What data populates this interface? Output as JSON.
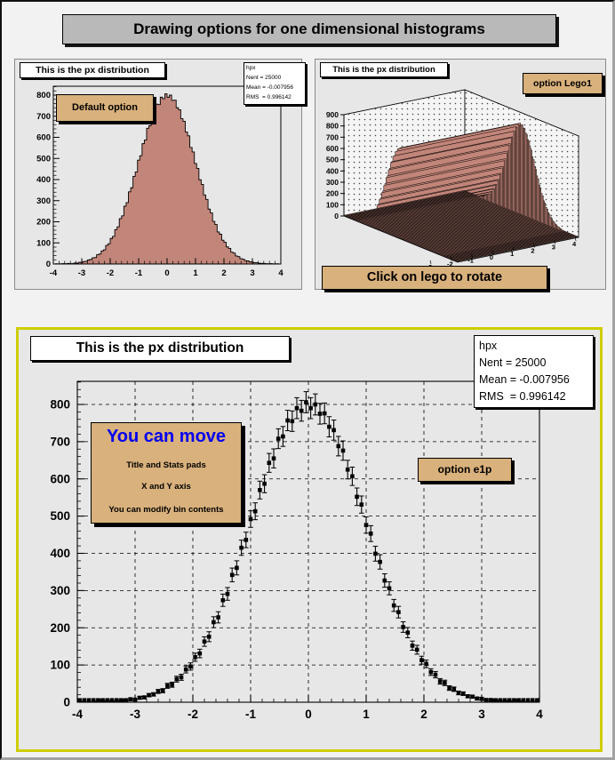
{
  "window": {
    "banner": "Drawing options for one dimensional histograms"
  },
  "colors": {
    "hist_fill": "#c28579",
    "label_tan": "#d9b17c",
    "banner_gray": "#b9b9b9",
    "selected_pad_border_yellow": "#cdcd00",
    "move_title_blue": "#0000f0",
    "wall_bg": "#f5f5f5"
  },
  "pads": {
    "top_left": {
      "title": "This is the px distribution",
      "option_label": "Default option",
      "stats": {
        "name": "hpx",
        "lines": [
          "Nent = 25000",
          "Mean = -0.007956",
          "RMS  = 0.996142"
        ]
      }
    },
    "top_right": {
      "title": "This is the px distribution",
      "option_label": "option Lego1",
      "footer_label": "Click on lego to rotate"
    },
    "bottom": {
      "title": "This is the px distribution",
      "option_label": "option e1p",
      "stats": {
        "name": "hpx",
        "lines": [
          "Nent = 25000",
          "Mean = -0.007956",
          "RMS  = 0.996142"
        ]
      },
      "move_box": {
        "title": "You can move",
        "lines": [
          "Title and Stats pads",
          "X and Y axis",
          "You can modify bin contents"
        ]
      }
    }
  },
  "chart_data": [
    {
      "type": "bar",
      "name": "hpx-default-option",
      "title": "This is the px distribution",
      "xlabel": "",
      "ylabel": "",
      "xlim": [
        -4,
        4
      ],
      "ylim": [
        0,
        842
      ],
      "bins": 100,
      "x_ticks": [
        -4,
        -3,
        -2,
        -1,
        0,
        1,
        2,
        3,
        4
      ],
      "y_ticks": [
        0,
        100,
        200,
        300,
        400,
        500,
        600,
        700,
        800
      ],
      "entries": 25000,
      "mean": -0.007956,
      "rms": 0.996142,
      "fill": "#c28579",
      "values": [
        0,
        1,
        0,
        1,
        2,
        1,
        3,
        2,
        2,
        5,
        4,
        8,
        7,
        12,
        13,
        19,
        21,
        29,
        31,
        44,
        47,
        62,
        67,
        88,
        96,
        121,
        131,
        163,
        176,
        215,
        228,
        274,
        291,
        342,
        361,
        415,
        436,
        492,
        513,
        570,
        587,
        643,
        655,
        708,
        714,
        757,
        755,
        790,
        783,
        806,
        790,
        800,
        775,
        776,
        740,
        731,
        688,
        676,
        625,
        607,
        552,
        531,
        476,
        453,
        399,
        377,
        327,
        306,
        260,
        242,
        202,
        187,
        152,
        141,
        113,
        103,
        81,
        74,
        56,
        52,
        38,
        35,
        25,
        23,
        16,
        15,
        10,
        9,
        6,
        6,
        4,
        3,
        3,
        2,
        1,
        2,
        1,
        0,
        1,
        0
      ]
    },
    {
      "type": "bar3d-lego",
      "name": "hpx-lego1",
      "title": "This is the px distribution",
      "xlim": [
        -4,
        4
      ],
      "zlim": [
        0,
        900
      ],
      "x_ticks": [
        -3,
        -2,
        -1,
        0,
        1,
        2,
        3,
        4
      ],
      "z_ticks": [
        0,
        100,
        200,
        300,
        400,
        500,
        600,
        700,
        800,
        900
      ],
      "values_from_chart": 0,
      "fill": "#c28579",
      "grid": "dotted-walls"
    },
    {
      "type": "scatter",
      "name": "hpx-e1p-errorbars",
      "title": "This is the px distribution",
      "marker": "filled-square",
      "error_bars": "sqrt(value)",
      "xlim": [
        -4,
        4
      ],
      "ylim": [
        0,
        862
      ],
      "x_ticks": [
        -4,
        -3,
        -2,
        -1,
        0,
        1,
        2,
        3,
        4
      ],
      "y_ticks": [
        0,
        100,
        200,
        300,
        400,
        500,
        600,
        700,
        800
      ],
      "grid": "dashed-both-axes",
      "values_from_chart": 0
    }
  ]
}
